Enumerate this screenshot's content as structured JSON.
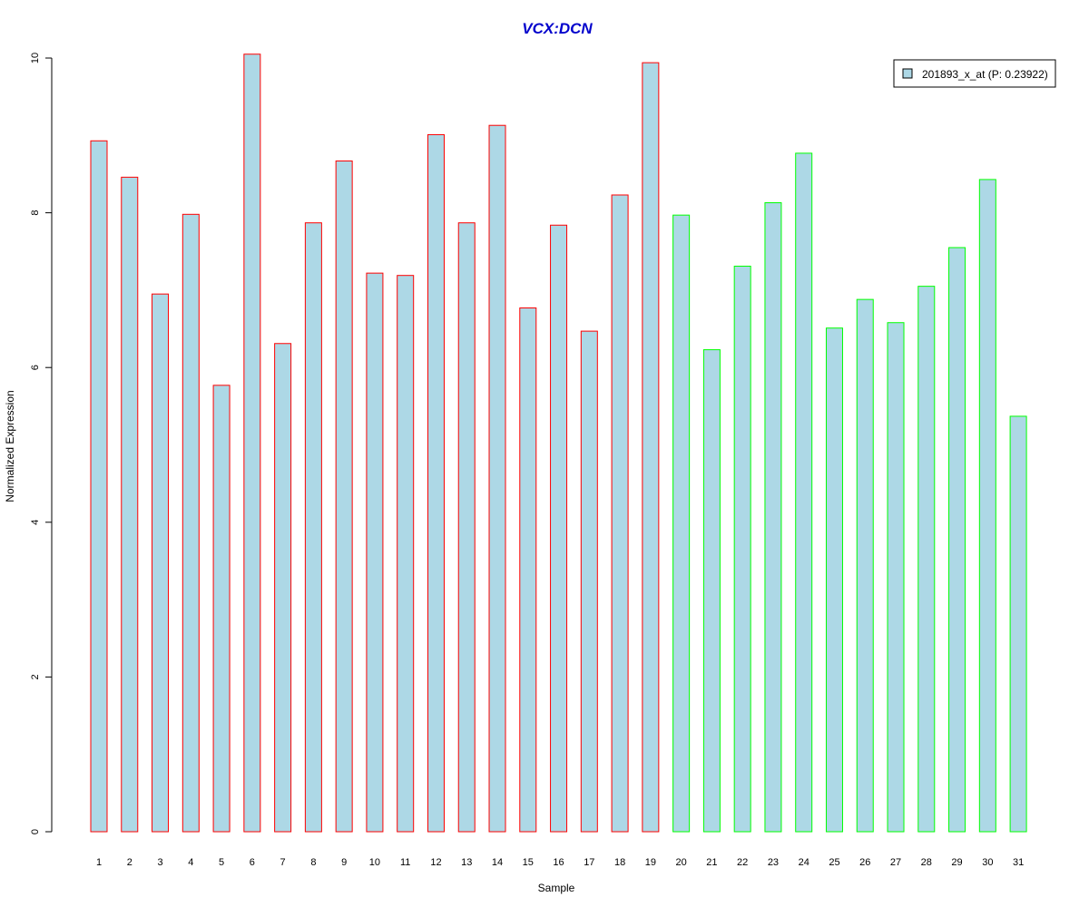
{
  "chart_data": {
    "type": "bar",
    "title": "VCX:DCN",
    "title_color": "#0000CC",
    "xlabel": "Sample",
    "ylabel": "Normalized Expression",
    "ylim": [
      0,
      10
    ],
    "yticks": [
      0,
      2,
      4,
      6,
      8,
      10
    ],
    "categories": [
      "1",
      "2",
      "3",
      "4",
      "5",
      "6",
      "7",
      "8",
      "9",
      "10",
      "11",
      "12",
      "13",
      "14",
      "15",
      "16",
      "17",
      "18",
      "19",
      "20",
      "21",
      "22",
      "23",
      "24",
      "25",
      "26",
      "27",
      "28",
      "29",
      "30",
      "31"
    ],
    "series": [
      {
        "name": "201893_x_at (P: 0.23922)",
        "values": [
          8.93,
          8.46,
          6.95,
          7.98,
          5.77,
          10.05,
          6.31,
          7.87,
          8.67,
          7.22,
          7.19,
          9.01,
          7.87,
          9.13,
          6.77,
          7.84,
          6.47,
          8.23,
          9.94,
          7.97,
          6.23,
          7.31,
          8.13,
          8.77,
          6.51,
          6.88,
          6.58,
          7.05,
          7.55,
          8.43,
          5.37
        ],
        "fill": "#ADD8E6"
      }
    ],
    "bar_border_colors": [
      "#FF0000",
      "#FF0000",
      "#FF0000",
      "#FF0000",
      "#FF0000",
      "#FF0000",
      "#FF0000",
      "#FF0000",
      "#FF0000",
      "#FF0000",
      "#FF0000",
      "#FF0000",
      "#FF0000",
      "#FF0000",
      "#FF0000",
      "#FF0000",
      "#FF0000",
      "#FF0000",
      "#FF0000",
      "#00FF00",
      "#00FF00",
      "#00FF00",
      "#00FF00",
      "#00FF00",
      "#00FF00",
      "#00FF00",
      "#00FF00",
      "#00FF00",
      "#00FF00",
      "#00FF00",
      "#00FF00"
    ],
    "legend": {
      "placement": "top-right",
      "label": "201893_x_at (P: 0.23922)"
    },
    "grid": false
  }
}
